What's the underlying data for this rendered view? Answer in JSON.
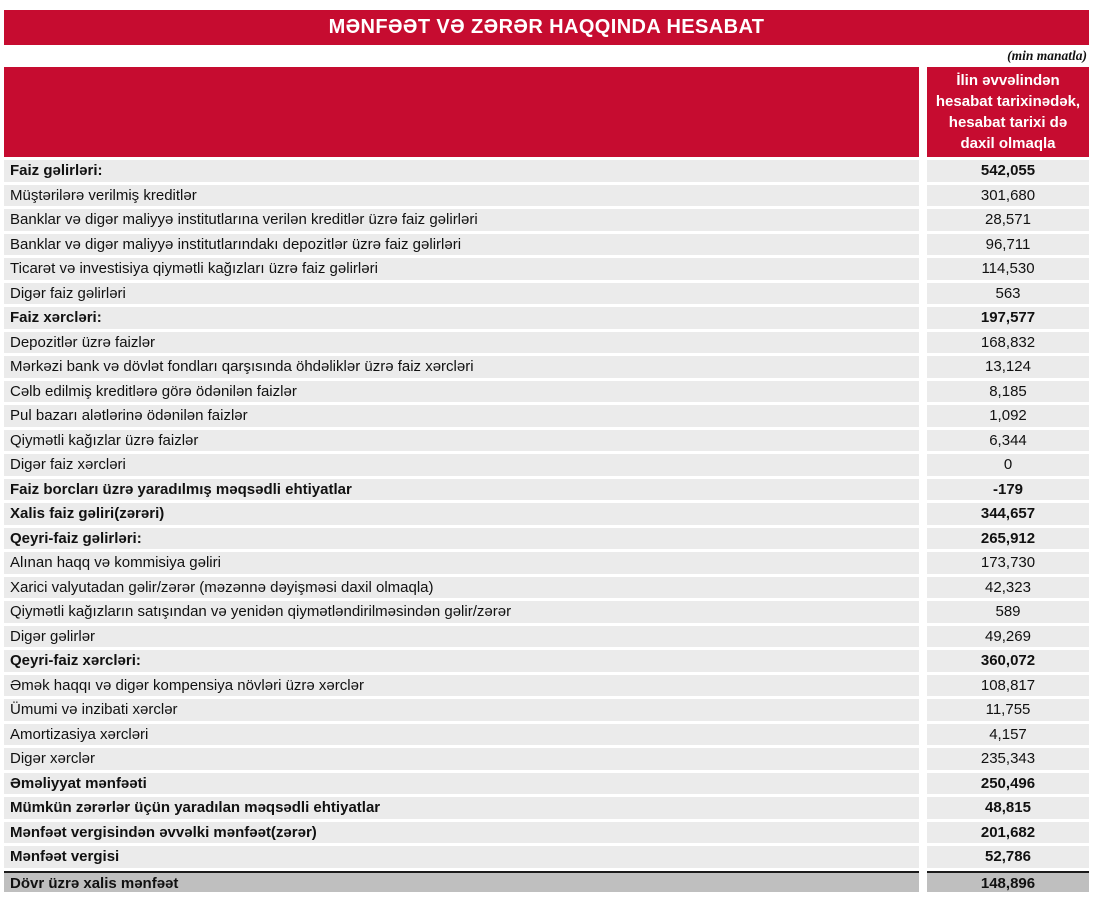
{
  "report": {
    "title": "MƏNFƏƏT VƏ ZƏRƏR HAQQINDA HESABAT",
    "units_note": "(min manatla)",
    "colors": {
      "accent_red": "#C60C30",
      "row_background": "#EBEBEB",
      "total_row_background": "#BFBFBF",
      "header_text": "#FFFFFF"
    }
  },
  "table": {
    "value_column_header": "İlin əvvəlindən hesabat tarixinədək, hesabat tarixi də daxil olmaqla",
    "rows": [
      {
        "label": "Faiz gəlirləri:",
        "value": "542,055",
        "bold": true,
        "total": false
      },
      {
        "label": "Müştərilərə verilmiş kreditlər",
        "value": "301,680",
        "bold": false,
        "total": false
      },
      {
        "label": "Banklar və digər maliyyə institutlarına verilən kreditlər üzrə faiz gəlirləri",
        "value": "28,571",
        "bold": false,
        "total": false
      },
      {
        "label": "Banklar və digər maliyyə institutlarındakı depozitlər üzrə faiz gəlirləri",
        "value": "96,711",
        "bold": false,
        "total": false
      },
      {
        "label": "Ticarət və investisiya qiymətli kağızları üzrə faiz gəlirləri",
        "value": "114,530",
        "bold": false,
        "total": false
      },
      {
        "label": "Digər faiz gəlirləri",
        "value": "563",
        "bold": false,
        "total": false
      },
      {
        "label": "Faiz xərcləri:",
        "value": "197,577",
        "bold": true,
        "total": false
      },
      {
        "label": "Depozitlər üzrə faizlər",
        "value": "168,832",
        "bold": false,
        "total": false
      },
      {
        "label": "Mərkəzi bank və dövlət fondları qarşısında öhdəliklər üzrə faiz xərcləri",
        "value": "13,124",
        "bold": false,
        "total": false
      },
      {
        "label": "Cəlb edilmiş kreditlərə görə ödənilən faizlər",
        "value": "8,185",
        "bold": false,
        "total": false
      },
      {
        "label": "Pul bazarı alətlərinə ödənilən faizlər",
        "value": "1,092",
        "bold": false,
        "total": false
      },
      {
        "label": "Qiymətli kağızlar üzrə faizlər",
        "value": "6,344",
        "bold": false,
        "total": false
      },
      {
        "label": "Digər faiz xərcləri",
        "value": "0",
        "bold": false,
        "total": false
      },
      {
        "label": "Faiz borcları üzrə yaradılmış məqsədli ehtiyatlar",
        "value": "-179",
        "bold": true,
        "total": false
      },
      {
        "label": "Xalis faiz gəliri(zərəri)",
        "value": "344,657",
        "bold": true,
        "total": false
      },
      {
        "label": "Qeyri-faiz gəlirləri:",
        "value": "265,912",
        "bold": true,
        "total": false
      },
      {
        "label": "Alınan haqq və kommisiya gəliri",
        "value": "173,730",
        "bold": false,
        "total": false
      },
      {
        "label": "Xarici valyutadan gəlir/zərər (məzənnə dəyişməsi daxil olmaqla)",
        "value": "42,323",
        "bold": false,
        "total": false
      },
      {
        "label": "Qiymətli kağızların satışından və yenidən qiymətləndirilməsindən gəlir/zərər",
        "value": "589",
        "bold": false,
        "total": false
      },
      {
        "label": "Digər gəlirlər",
        "value": "49,269",
        "bold": false,
        "total": false
      },
      {
        "label": "Qeyri-faiz xərcləri:",
        "value": "360,072",
        "bold": true,
        "total": false
      },
      {
        "label": "Əmək haqqı və digər kompensiya növləri üzrə xərclər",
        "value": "108,817",
        "bold": false,
        "total": false
      },
      {
        "label": "Ümumi və inzibati xərclər",
        "value": "11,755",
        "bold": false,
        "total": false
      },
      {
        "label": "Amortizasiya xərcləri",
        "value": "4,157",
        "bold": false,
        "total": false
      },
      {
        "label": "Digər xərclər",
        "value": "235,343",
        "bold": false,
        "total": false
      },
      {
        "label": "Əməliyyat mənfəəti",
        "value": "250,496",
        "bold": true,
        "total": false
      },
      {
        "label": "Mümkün zərərlər üçün yaradılan məqsədli ehtiyatlar",
        "value": "48,815",
        "bold": true,
        "total": false
      },
      {
        "label": "Mənfəət vergisindən əvvəlki mənfəət(zərər)",
        "value": "201,682",
        "bold": true,
        "total": false
      },
      {
        "label": "Mənfəət vergisi",
        "value": "52,786",
        "bold": true,
        "total": false
      },
      {
        "label": "Dövr üzrə xalis mənfəət",
        "value": "148,896",
        "bold": true,
        "total": true
      }
    ]
  }
}
